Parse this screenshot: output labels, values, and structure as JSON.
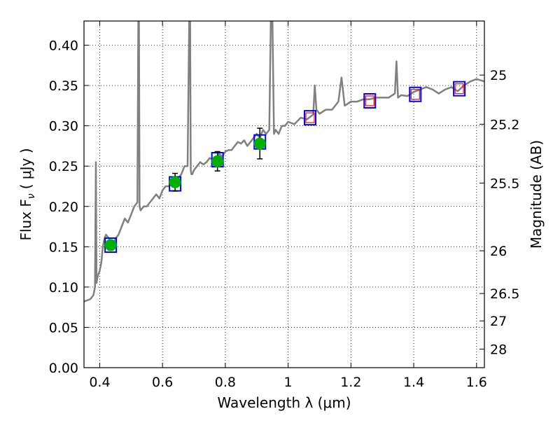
{
  "chart_data": {
    "type": "line",
    "title": "",
    "xlabel": "Wavelength  λ (μm)",
    "ylabel": "Flux  F",
    "ylabel_subscript": "ν",
    "ylabel_unit": "( μJy )",
    "y2label": "Magnitude (AB)",
    "xlim": [
      0.35,
      1.625
    ],
    "ylim": [
      0.0,
      0.43
    ],
    "grid": true,
    "x_ticks": [
      0.4,
      0.6,
      0.8,
      1.0,
      1.2,
      1.4,
      1.6
    ],
    "x_tick_labels": [
      "0.4",
      "0.6",
      "0.8",
      "1",
      "1.2",
      "1.4",
      "1.6"
    ],
    "y_ticks": [
      0.0,
      0.05,
      0.1,
      0.15,
      0.2,
      0.25,
      0.3,
      0.35,
      0.4
    ],
    "y_tick_labels": [
      "0.00",
      "0.05",
      "0.10",
      "0.15",
      "0.20",
      "0.25",
      "0.30",
      "0.35",
      "0.40"
    ],
    "y2_ticks": [
      {
        "label": "25",
        "flux": 0.363
      },
      {
        "label": "25.2",
        "flux": 0.302
      },
      {
        "label": "25.5",
        "flux": 0.229
      },
      {
        "label": "26",
        "flux": 0.145
      },
      {
        "label": "26.5",
        "flux": 0.092
      },
      {
        "label": "27",
        "flux": 0.058
      },
      {
        "label": "28",
        "flux": 0.023
      }
    ],
    "colors": {
      "spectrum": "#808080",
      "observed": "#00b000",
      "model_box": "#0000ff",
      "predicted": "#ff0000",
      "grid": "#000000"
    },
    "series": [
      {
        "kind": "spectrum",
        "x": [
          0.35,
          0.37,
          0.38,
          0.385,
          0.388,
          0.39,
          0.392,
          0.395,
          0.4,
          0.405,
          0.41,
          0.415,
          0.42,
          0.43,
          0.44,
          0.45,
          0.46,
          0.47,
          0.48,
          0.49,
          0.5,
          0.51,
          0.52,
          0.523,
          0.525,
          0.527,
          0.53,
          0.54,
          0.55,
          0.56,
          0.57,
          0.58,
          0.59,
          0.6,
          0.61,
          0.62,
          0.63,
          0.64,
          0.65,
          0.66,
          0.67,
          0.68,
          0.685,
          0.688,
          0.69,
          0.692,
          0.695,
          0.7,
          0.71,
          0.72,
          0.73,
          0.74,
          0.75,
          0.76,
          0.77,
          0.78,
          0.79,
          0.8,
          0.81,
          0.82,
          0.83,
          0.84,
          0.85,
          0.86,
          0.87,
          0.88,
          0.89,
          0.9,
          0.91,
          0.92,
          0.93,
          0.94,
          0.945,
          0.95,
          0.955,
          0.96,
          0.97,
          0.98,
          0.99,
          1.0,
          1.02,
          1.04,
          1.06,
          1.08,
          1.085,
          1.09,
          1.1,
          1.12,
          1.14,
          1.16,
          1.17,
          1.18,
          1.2,
          1.22,
          1.24,
          1.26,
          1.28,
          1.3,
          1.32,
          1.34,
          1.345,
          1.35,
          1.36,
          1.38,
          1.4,
          1.42,
          1.44,
          1.46,
          1.48,
          1.5,
          1.52,
          1.54,
          1.56,
          1.58,
          1.6,
          1.625
        ],
        "y": [
          0.082,
          0.085,
          0.09,
          0.1,
          0.255,
          0.105,
          0.11,
          0.115,
          0.12,
          0.13,
          0.15,
          0.16,
          0.165,
          0.16,
          0.15,
          0.16,
          0.165,
          0.175,
          0.185,
          0.18,
          0.19,
          0.2,
          0.205,
          0.43,
          0.43,
          0.2,
          0.195,
          0.2,
          0.2,
          0.205,
          0.21,
          0.215,
          0.21,
          0.22,
          0.225,
          0.225,
          0.23,
          0.232,
          0.235,
          0.24,
          0.25,
          0.25,
          0.43,
          0.43,
          0.245,
          0.24,
          0.24,
          0.245,
          0.25,
          0.255,
          0.252,
          0.255,
          0.26,
          0.258,
          0.26,
          0.265,
          0.262,
          0.268,
          0.27,
          0.27,
          0.275,
          0.28,
          0.278,
          0.282,
          0.275,
          0.28,
          0.285,
          0.29,
          0.285,
          0.295,
          0.29,
          0.295,
          0.43,
          0.43,
          0.29,
          0.295,
          0.29,
          0.3,
          0.3,
          0.305,
          0.302,
          0.31,
          0.308,
          0.314,
          0.35,
          0.32,
          0.315,
          0.32,
          0.32,
          0.33,
          0.36,
          0.325,
          0.33,
          0.33,
          0.333,
          0.333,
          0.335,
          0.335,
          0.335,
          0.34,
          0.38,
          0.335,
          0.338,
          0.337,
          0.342,
          0.345,
          0.348,
          0.345,
          0.34,
          0.345,
          0.348,
          0.343,
          0.35,
          0.355,
          0.358,
          0.355
        ]
      },
      {
        "kind": "model-boxes",
        "x": [
          0.435,
          0.64,
          0.775,
          0.91,
          1.07,
          1.26,
          1.405,
          1.545
        ],
        "y": [
          0.152,
          0.228,
          0.258,
          0.28,
          0.31,
          0.331,
          0.339,
          0.346
        ]
      },
      {
        "kind": "predicted-boxes",
        "x": [
          1.07,
          1.26,
          1.405,
          1.545
        ],
        "y": [
          0.31,
          0.331,
          0.339,
          0.346
        ]
      },
      {
        "kind": "observed-points",
        "x": [
          0.435,
          0.64,
          0.775,
          0.91
        ],
        "y": [
          0.152,
          0.23,
          0.256,
          0.278
        ],
        "yerr": [
          0.006,
          0.011,
          0.012,
          0.019
        ]
      }
    ]
  }
}
